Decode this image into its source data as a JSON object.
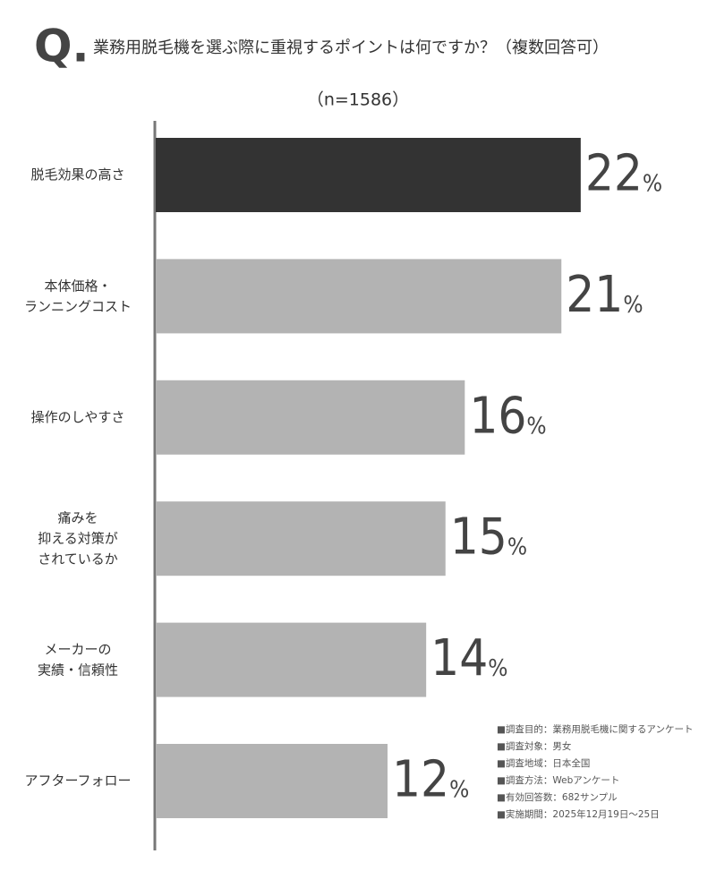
{
  "chart_data": {
    "type": "hbar",
    "title_prefix": "Q.",
    "title": "業務用脱毛機を選ぶ際に重視するポイントは何ですか？（複数回答可）",
    "subtitle": "（n=1586）",
    "categories": [
      "脱毛効果の高さ",
      "本体価格・\nランニングコスト",
      "操作のしやすさ",
      "痛みを\n抑える対策が\nされているか",
      "メーカーの\n実績・信頼性",
      "アフターフォロー"
    ],
    "values": [
      22,
      21,
      16,
      15,
      14,
      12
    ],
    "value_labels": [
      "22%",
      "21%",
      "16%",
      "15%",
      "14%",
      "12%"
    ],
    "colors": [
      "#333333",
      "#b3b3b3",
      "#b3b3b3",
      "#b3b3b3",
      "#b3b3b3",
      "#b3b3b3"
    ],
    "xlim": [
      0,
      24
    ],
    "notes": [
      "■調査目的：業務用脱毛機に関するアンケート",
      "■調査対象：男女",
      "■調査地域：日本全国",
      "■調査方法：Webアンケート",
      "■有効回答数：682サンプル",
      "■実施期間：2025年12月19日～25日"
    ]
  }
}
